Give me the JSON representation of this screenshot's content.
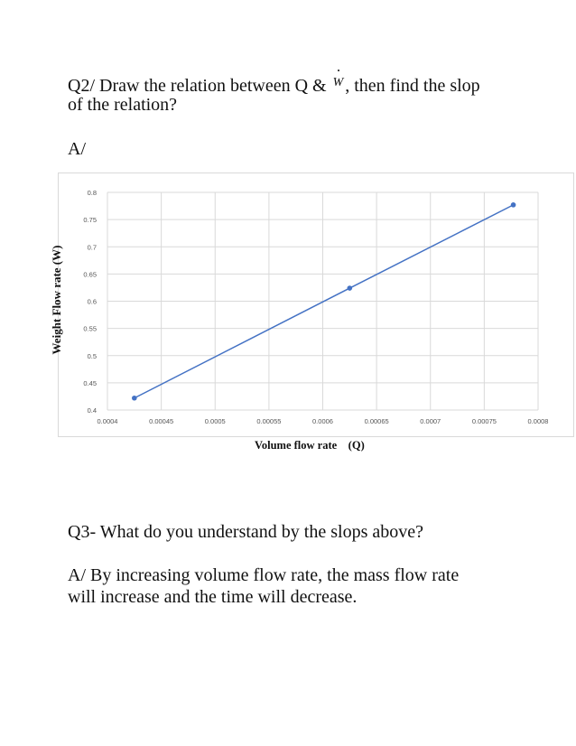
{
  "question2": {
    "line1_prefix": "Q2/ Draw the relation between Q &",
    "symbol": "W",
    "line1_suffix": ", then find the slop",
    "line2": "of the relation?"
  },
  "answer2_label": "A/",
  "chart_data": {
    "type": "line",
    "title": "",
    "xlabel": "Volume flow rate    (Q)",
    "ylabel": "Weight Flow rate (W)",
    "xlim": [
      0.0004,
      0.0008
    ],
    "ylim": [
      0.4,
      0.8
    ],
    "x_ticks": [
      "0.0004",
      "0.00045",
      "0.0005",
      "0.00055",
      "0.0006",
      "0.00065",
      "0.0007",
      "0.00075",
      "0.0008"
    ],
    "y_ticks": [
      "0.4",
      "0.45",
      "0.5",
      "0.55",
      "0.6",
      "0.65",
      "0.7",
      "0.75",
      "0.8"
    ],
    "grid": true,
    "series": [
      {
        "color": "#4472c4",
        "points": [
          {
            "x": 0.000425,
            "y": 0.422
          },
          {
            "x": 0.000625,
            "y": 0.624
          },
          {
            "x": 0.000777,
            "y": 0.777
          }
        ]
      }
    ]
  },
  "question3": "Q3- What do you understand by the slops above?",
  "answer3": {
    "line1": "A/ By increasing volume flow rate, the mass flow rate",
    "line2": "will increase and the time will decrease."
  }
}
